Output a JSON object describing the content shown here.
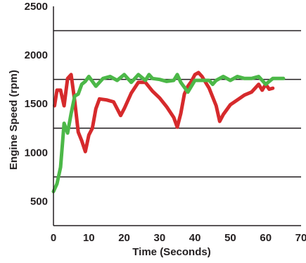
{
  "chart_data": {
    "type": "line",
    "xlabel": "Time (Seconds)",
    "ylabel": "Engine Speed (rpm)",
    "xlim": [
      0,
      70
    ],
    "ylim": [
      250,
      2500
    ],
    "x_ticks": [
      0,
      10,
      20,
      30,
      40,
      50,
      60,
      70
    ],
    "y_ticks": [
      500,
      1000,
      1500,
      2000,
      2500
    ],
    "gridlines_y": [
      750,
      1250,
      1750,
      2250
    ],
    "grid": true,
    "legend": "none",
    "series": [
      {
        "color": "#d62a2c",
        "x": [
          0.3,
          1,
          2,
          3,
          4,
          5,
          6,
          7,
          8,
          9,
          10,
          11,
          12,
          13,
          15,
          17,
          19,
          20,
          22,
          24,
          26,
          28,
          30,
          32,
          34,
          35,
          36,
          37,
          38,
          39,
          40,
          41,
          42,
          44,
          46,
          47,
          48,
          49,
          50,
          52,
          54,
          56,
          58,
          59,
          60,
          61,
          62
        ],
        "y": [
          1480,
          1640,
          1640,
          1480,
          1760,
          1800,
          1530,
          1210,
          1120,
          1010,
          1180,
          1250,
          1450,
          1550,
          1540,
          1520,
          1380,
          1450,
          1610,
          1720,
          1720,
          1630,
          1560,
          1470,
          1360,
          1260,
          1400,
          1600,
          1680,
          1730,
          1800,
          1820,
          1780,
          1660,
          1480,
          1320,
          1390,
          1440,
          1490,
          1540,
          1590,
          1620,
          1700,
          1640,
          1700,
          1650,
          1660
        ]
      },
      {
        "color": "#4cb848",
        "x": [
          0,
          1,
          2,
          3,
          4,
          5,
          6,
          7,
          8,
          9,
          10,
          12,
          14,
          16,
          18,
          20,
          22,
          24,
          26,
          27,
          28,
          30,
          32,
          34,
          35,
          36,
          38,
          40,
          42,
          44,
          45,
          46,
          48,
          50,
          52,
          54,
          56,
          58,
          60,
          62,
          64,
          65
        ],
        "y": [
          600,
          680,
          850,
          1300,
          1200,
          1400,
          1580,
          1600,
          1700,
          1730,
          1780,
          1680,
          1760,
          1780,
          1740,
          1800,
          1720,
          1800,
          1740,
          1800,
          1760,
          1750,
          1730,
          1740,
          1800,
          1720,
          1620,
          1740,
          1740,
          1740,
          1700,
          1740,
          1780,
          1740,
          1780,
          1760,
          1760,
          1780,
          1700,
          1760,
          1760,
          1760
        ]
      }
    ]
  }
}
